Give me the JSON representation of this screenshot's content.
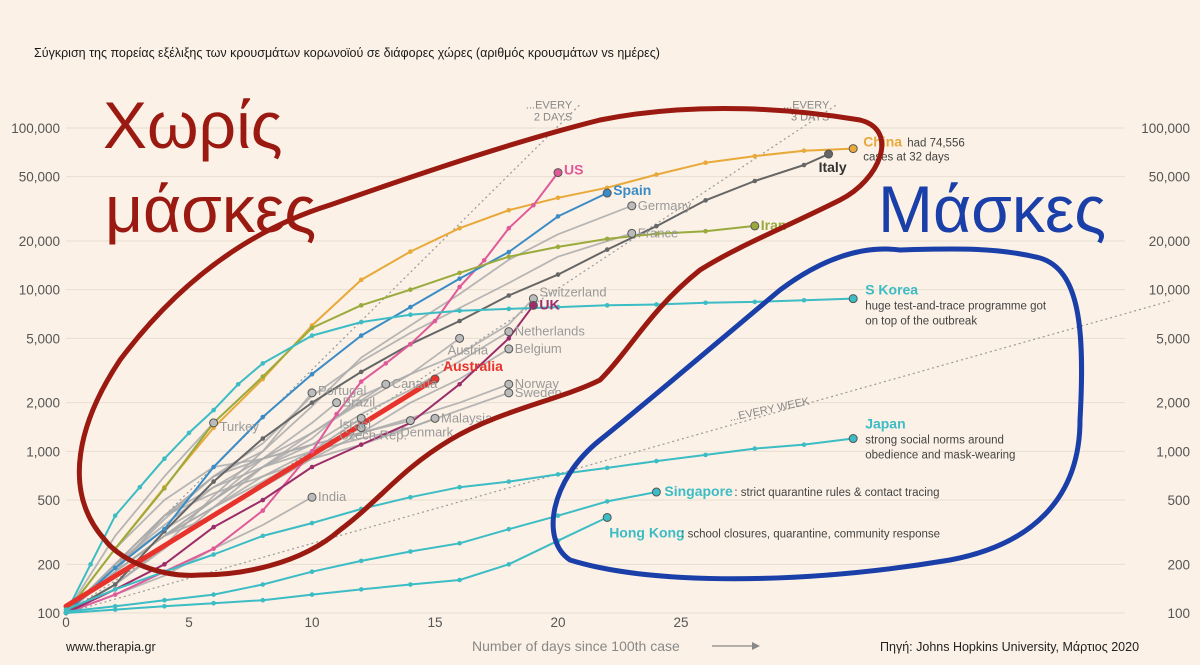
{
  "subtitle": "Σύγκριση της πορείας εξέλιξης των κρουσμάτων κορωνοϊού σε διάφορες χώρες (αριθμός κρουσμάτων vs ημέρες)",
  "source_left": "www.therapia.gr",
  "source_right": "Πηγή: Johns Hopkins University, Μάρτιος 2020",
  "overlay": {
    "no_masks": [
      "Χωρίς",
      "μάσκες"
    ],
    "masks": "Μάσκες"
  },
  "chart_data": {
    "type": "line",
    "x_label": "Number of days since 100th case",
    "x_range": [
      0,
      45
    ],
    "x_ticks": [
      0,
      5,
      10,
      15,
      20,
      25
    ],
    "y_scale": "log",
    "y_range": [
      100,
      100000
    ],
    "y_ticks": [
      100,
      200,
      500,
      1000,
      2000,
      5000,
      10000,
      20000,
      50000,
      100000
    ],
    "y_tick_labels": [
      "100",
      "200",
      "500",
      "1,000",
      "2,000",
      "5,000",
      "10,000",
      "20,000",
      "50,000",
      "100,000"
    ],
    "grid": "horizontal",
    "reference_lines": [
      {
        "label": "...EVERY\n2 DAYS",
        "doubling_days": 2
      },
      {
        "label": "...EVERY\n3 DAYS",
        "doubling_days": 3
      },
      {
        "label": "...EVERY WEEK",
        "doubling_days": 7
      }
    ],
    "series": [
      {
        "name": "China",
        "color": "#e8a93a",
        "label": "China",
        "note": "had 74,556 cases at 32 days",
        "highlight": true,
        "x": [
          0,
          2,
          4,
          6,
          8,
          10,
          12,
          14,
          16,
          18,
          20,
          22,
          24,
          26,
          28,
          30,
          32
        ],
        "y": [
          100,
          250,
          600,
          1400,
          2800,
          6000,
          11500,
          17200,
          24000,
          31000,
          37000,
          42700,
          51500,
          61000,
          67000,
          72400,
          74556
        ]
      },
      {
        "name": "Italy",
        "color": "#666666",
        "label": "Italy",
        "highlight": true,
        "x": [
          0,
          2,
          4,
          6,
          8,
          10,
          12,
          14,
          16,
          18,
          20,
          22,
          24,
          26,
          28,
          30,
          31
        ],
        "y": [
          100,
          150,
          320,
          650,
          1200,
          2000,
          3100,
          4600,
          6400,
          9200,
          12400,
          17700,
          24700,
          35700,
          47000,
          59000,
          69000
        ]
      },
      {
        "name": "US",
        "color": "#e05a9a",
        "label": "US",
        "highlight": true,
        "x": [
          0,
          2,
          4,
          6,
          8,
          10,
          11,
          12,
          13,
          14,
          15,
          16,
          17,
          18,
          19,
          20
        ],
        "y": [
          100,
          130,
          180,
          250,
          430,
          1000,
          1700,
          2700,
          3500,
          4600,
          6400,
          10400,
          15200,
          24000,
          33300,
          53000
        ]
      },
      {
        "name": "Spain",
        "color": "#3a8cc6",
        "label": "Spain",
        "highlight": true,
        "x": [
          0,
          2,
          4,
          6,
          8,
          10,
          12,
          14,
          16,
          18,
          20,
          22
        ],
        "y": [
          100,
          190,
          330,
          800,
          1630,
          3000,
          5200,
          7800,
          11700,
          17100,
          28400,
          39600
        ]
      },
      {
        "name": "Germany",
        "color": "#aaaaaa",
        "label": "Germany",
        "x": [
          0,
          2,
          4,
          6,
          8,
          10,
          12,
          14,
          16,
          18,
          20,
          23
        ],
        "y": [
          100,
          150,
          260,
          530,
          1000,
          1900,
          3800,
          6000,
          9400,
          15300,
          22000,
          33000
        ]
      },
      {
        "name": "France",
        "color": "#aaaaaa",
        "label": "France",
        "x": [
          0,
          2,
          4,
          6,
          8,
          10,
          12,
          14,
          16,
          18,
          20,
          23
        ],
        "y": [
          100,
          190,
          380,
          700,
          1120,
          2200,
          3600,
          5400,
          7700,
          11000,
          16000,
          22300
        ]
      },
      {
        "name": "Iran",
        "color": "#9aaa3c",
        "label": "Iran",
        "highlight": true,
        "x": [
          0,
          2,
          4,
          6,
          8,
          10,
          12,
          14,
          16,
          18,
          20,
          22,
          24,
          26,
          28
        ],
        "y": [
          100,
          250,
          590,
          1500,
          2900,
          5800,
          8000,
          10000,
          12700,
          16000,
          18400,
          20600,
          22200,
          23000,
          24800
        ]
      },
      {
        "name": "S Korea",
        "color": "#3cbcc4",
        "label": "S Korea",
        "note": "huge test-and-trace programme got on top of the outbreak",
        "highlight": true,
        "x": [
          0,
          1,
          2,
          3,
          4,
          5,
          6,
          7,
          8,
          10,
          12,
          14,
          16,
          18,
          20,
          22,
          24,
          26,
          28,
          30,
          32
        ],
        "y": [
          100,
          200,
          400,
          600,
          900,
          1300,
          1800,
          2600,
          3500,
          5200,
          6300,
          7000,
          7400,
          7600,
          7800,
          8000,
          8100,
          8300,
          8400,
          8600,
          8800
        ]
      },
      {
        "name": "Switzerland",
        "color": "#aaaaaa",
        "label": "Switzerland",
        "x": [
          0,
          2,
          4,
          6,
          8,
          10,
          12,
          14,
          16,
          18,
          19
        ],
        "y": [
          100,
          200,
          330,
          500,
          800,
          1200,
          2200,
          3000,
          4000,
          6100,
          8800
        ]
      },
      {
        "name": "UK",
        "color": "#9b2d6a",
        "label": "UK",
        "highlight": true,
        "x": [
          0,
          2,
          4,
          6,
          8,
          10,
          12,
          14,
          16,
          18,
          19
        ],
        "y": [
          100,
          140,
          200,
          340,
          500,
          800,
          1100,
          1500,
          2600,
          5000,
          8000
        ]
      },
      {
        "name": "Netherlands",
        "color": "#aaaaaa",
        "label": "Netherlands",
        "x": [
          0,
          2,
          4,
          6,
          8,
          10,
          12,
          14,
          16,
          18
        ],
        "y": [
          100,
          180,
          300,
          500,
          800,
          1100,
          1700,
          2400,
          3600,
          5500
        ]
      },
      {
        "name": "Austria",
        "color": "#aaaaaa",
        "label": "Austria",
        "x": [
          0,
          2,
          4,
          6,
          8,
          10,
          12,
          14,
          16
        ],
        "y": [
          100,
          180,
          300,
          500,
          900,
          1300,
          2000,
          3000,
          5000
        ]
      },
      {
        "name": "Belgium",
        "color": "#aaaaaa",
        "label": "Belgium",
        "x": [
          0,
          2,
          4,
          6,
          8,
          10,
          12,
          14,
          16,
          18
        ],
        "y": [
          100,
          180,
          300,
          400,
          600,
          900,
          1300,
          2000,
          2800,
          4300
        ]
      },
      {
        "name": "Norway",
        "color": "#aaaaaa",
        "label": "Norway",
        "x": [
          0,
          2,
          4,
          6,
          8,
          10,
          12,
          14,
          16,
          18
        ],
        "y": [
          100,
          180,
          400,
          700,
          900,
          1100,
          1300,
          1600,
          2000,
          2600
        ]
      },
      {
        "name": "Sweden",
        "color": "#aaaaaa",
        "label": "Sweden",
        "x": [
          0,
          2,
          4,
          6,
          8,
          10,
          12,
          14,
          16,
          18
        ],
        "y": [
          100,
          200,
          400,
          600,
          800,
          1000,
          1200,
          1400,
          1800,
          2300
        ]
      },
      {
        "name": "Australia",
        "color": "#e8322c",
        "label": "Australia",
        "highlight": true,
        "thick": true,
        "x": [
          0,
          15
        ],
        "y": [
          110,
          2800
        ]
      },
      {
        "name": "Portugal",
        "color": "#aaaaaa",
        "label": "Portugal",
        "x": [
          0,
          2,
          4,
          6,
          8,
          10
        ],
        "y": [
          100,
          200,
          400,
          700,
          1000,
          2300
        ]
      },
      {
        "name": "Canada",
        "color": "#aaaaaa",
        "label": "Canada",
        "x": [
          0,
          2,
          4,
          6,
          8,
          10,
          13
        ],
        "y": [
          100,
          150,
          250,
          450,
          800,
          1300,
          2600
        ]
      },
      {
        "name": "Brazil",
        "color": "#aaaaaa",
        "label": "Brazil",
        "x": [
          0,
          2,
          4,
          6,
          8,
          10,
          11
        ],
        "y": [
          100,
          200,
          350,
          600,
          900,
          1500,
          2000
        ]
      },
      {
        "name": "Israel",
        "color": "#aaaaaa",
        "label": "Israel",
        "x": [
          0,
          2,
          4,
          6,
          8,
          10,
          12
        ],
        "y": [
          100,
          180,
          300,
          450,
          700,
          1000,
          1600
        ]
      },
      {
        "name": "Turkey",
        "color": "#aaaaaa",
        "label": "Turkey",
        "x": [
          0,
          2,
          4,
          6
        ],
        "y": [
          100,
          300,
          700,
          1500
        ]
      },
      {
        "name": "Malaysia",
        "color": "#aaaaaa",
        "label": "Malaysia",
        "x": [
          0,
          2,
          4,
          6,
          8,
          10,
          12,
          14,
          15
        ],
        "y": [
          100,
          200,
          400,
          550,
          700,
          900,
          1100,
          1400,
          1600
        ]
      },
      {
        "name": "Denmark",
        "color": "#aaaaaa",
        "label": "Denmark",
        "x": [
          0,
          2,
          4,
          6,
          8,
          10,
          12,
          14
        ],
        "y": [
          100,
          250,
          500,
          800,
          900,
          1100,
          1300,
          1550
        ]
      },
      {
        "name": "Czech Rep.",
        "color": "#aaaaaa",
        "label": "Czech Rep.",
        "x": [
          0,
          2,
          4,
          6,
          8,
          10,
          12
        ],
        "y": [
          100,
          180,
          300,
          450,
          650,
          950,
          1400
        ]
      },
      {
        "name": "India",
        "color": "#aaaaaa",
        "label": "India",
        "x": [
          0,
          2,
          4,
          6,
          8,
          10
        ],
        "y": [
          100,
          130,
          170,
          250,
          350,
          520
        ]
      },
      {
        "name": "Japan",
        "color": "#3cbcc4",
        "label": "Japan",
        "note": "strong social norms around obedience and mask-wearing",
        "highlight": true,
        "x": [
          0,
          2,
          4,
          6,
          8,
          10,
          12,
          14,
          16,
          18,
          20,
          22,
          24,
          26,
          28,
          30,
          32
        ],
        "y": [
          105,
          140,
          180,
          230,
          300,
          360,
          440,
          520,
          600,
          650,
          720,
          790,
          870,
          950,
          1040,
          1100,
          1200
        ]
      },
      {
        "name": "Singapore",
        "color": "#3cbcc4",
        "label": "Singapore",
        "note": "strict quarantine rules & contact tracing",
        "highlight": true,
        "x": [
          0,
          2,
          4,
          6,
          8,
          10,
          12,
          14,
          16,
          18,
          20,
          22,
          24
        ],
        "y": [
          102,
          110,
          120,
          130,
          150,
          180,
          210,
          240,
          270,
          330,
          400,
          490,
          560
        ]
      },
      {
        "name": "Hong Kong",
        "color": "#3cbcc4",
        "label": "Hong Kong",
        "note": "school closures, quarantine, community response",
        "highlight": true,
        "x": [
          0,
          2,
          4,
          6,
          8,
          10,
          12,
          14,
          16,
          18,
          20,
          22
        ],
        "y": [
          100,
          105,
          110,
          115,
          120,
          130,
          140,
          150,
          160,
          200,
          280,
          390
        ]
      }
    ]
  }
}
